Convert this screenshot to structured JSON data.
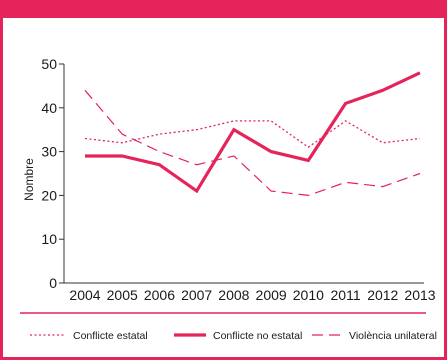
{
  "colors": {
    "accent": "#e4245a",
    "axis": "#333333",
    "text": "#1a1a1a"
  },
  "chart_data": {
    "type": "line",
    "ylabel": "Nombre",
    "xlabel": "",
    "x": [
      "2004",
      "2005",
      "2006",
      "2007",
      "2008",
      "2009",
      "2010",
      "2011",
      "2012",
      "2013"
    ],
    "ylim": [
      0,
      50
    ],
    "yticks": [
      0,
      10,
      20,
      30,
      40,
      50
    ],
    "grid": false,
    "legend_position": "bottom",
    "series": [
      {
        "name": "Conflicte estatal",
        "style": "dotted",
        "values": [
          33,
          32,
          34,
          35,
          37,
          37,
          31,
          37,
          32,
          33
        ]
      },
      {
        "name": "Conflicte no estatal",
        "style": "solid-thick",
        "values": [
          29,
          29,
          27,
          21,
          35,
          30,
          28,
          41,
          44,
          48
        ]
      },
      {
        "name": "Violència unilateral",
        "style": "dashed",
        "values": [
          44,
          34,
          30,
          27,
          29,
          21,
          20,
          23,
          22,
          25
        ]
      }
    ]
  }
}
